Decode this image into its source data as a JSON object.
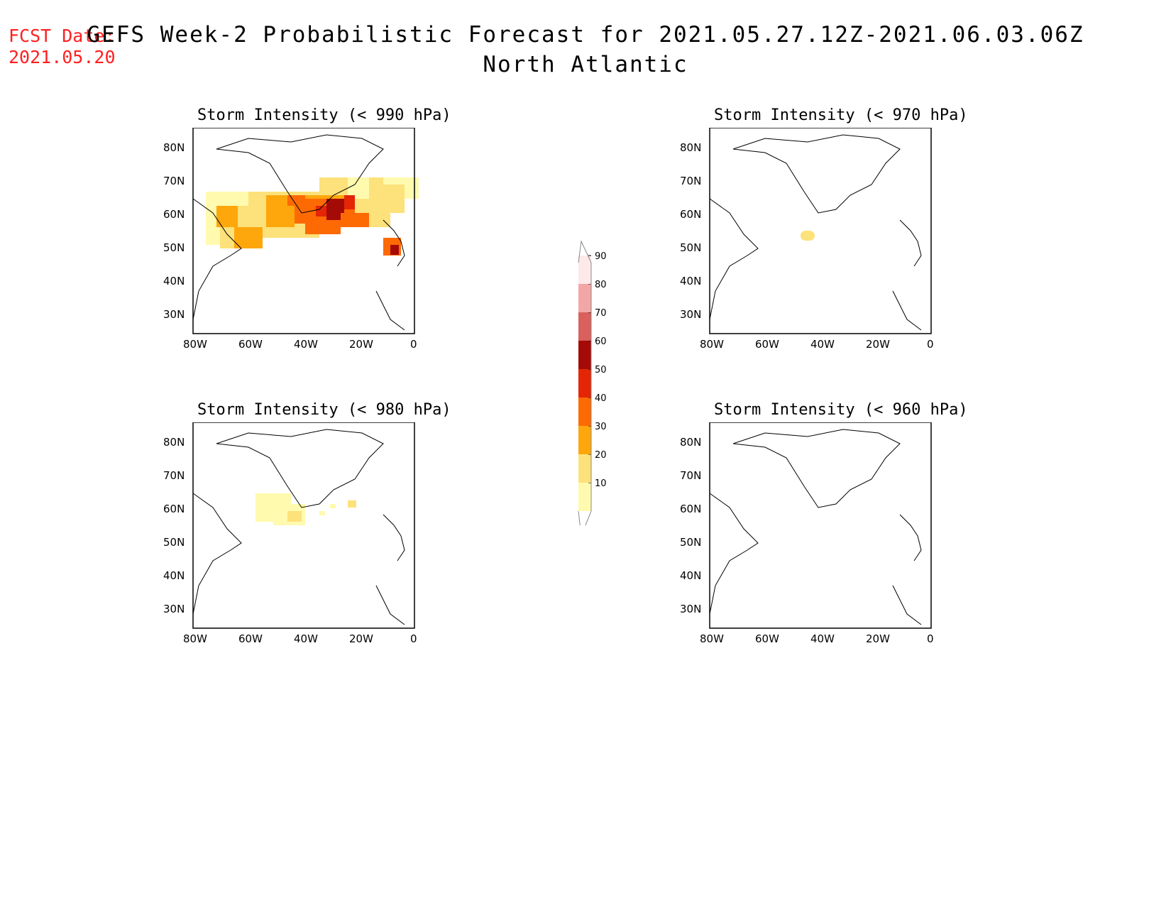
{
  "header": {
    "fcst_label": "FCST Date:",
    "fcst_date": "2021.05.20",
    "title": "GEFS Week-2 Probabilistic Forecast for 2021.05.27.12Z-2021.06.03.06Z",
    "region": "North Atlantic"
  },
  "panels": [
    {
      "id": "p990",
      "title": "Storm Intensity (< 990 hPa)"
    },
    {
      "id": "p970",
      "title": "Storm Intensity (< 970 hPa)"
    },
    {
      "id": "p980",
      "title": "Storm Intensity (< 980 hPa)"
    },
    {
      "id": "p960",
      "title": "Storm Intensity (< 960 hPa)"
    }
  ],
  "axes": {
    "lat_labels": [
      "80N",
      "70N",
      "60N",
      "50N",
      "40N",
      "30N"
    ],
    "lon_labels": [
      "80W",
      "60W",
      "40W",
      "20W",
      "0"
    ]
  },
  "colorbar": {
    "labels": [
      "10",
      "20",
      "30",
      "40",
      "50",
      "60",
      "70",
      "80",
      "90"
    ],
    "colors": [
      "#fffaae",
      "#fde17a",
      "#fda70c",
      "#fd6a04",
      "#e42506",
      "#a50b06",
      "#d9605c",
      "#f3a6a6",
      "#fde9e9"
    ]
  }
}
